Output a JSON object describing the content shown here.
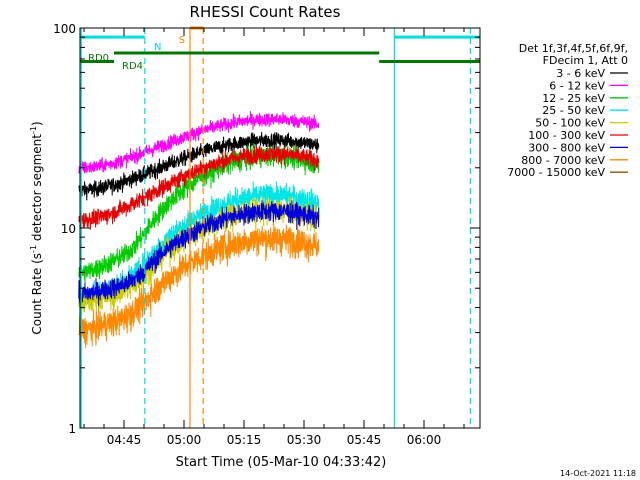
{
  "chart_data": {
    "type": "line",
    "title": "RHESSI Count Rates",
    "xlabel": "Start Time (05-Mar-10 04:33:42)",
    "ylabel": "Count Rate (s⁻¹ detector segment⁻¹)",
    "ylabel_main": "Count Rate (s",
    "ylabel_mid": " detector segment",
    "ylabel_end": ")",
    "ylabel_sup": "-1",
    "x_start_minute": 33.7,
    "x_end_minute": 93.7,
    "x_ticks": [
      {
        "minute": 45,
        "label": "04:45"
      },
      {
        "minute": 60,
        "label": "05:00"
      },
      {
        "minute": 75,
        "label": "05:15"
      },
      {
        "minute": 90,
        "label": "05:30"
      },
      {
        "minute": 105,
        "label": "05:45"
      },
      {
        "minute": 120,
        "label": "06:00"
      }
    ],
    "xlim_minutes": [
      34,
      134
    ],
    "ylim": [
      1,
      100
    ],
    "y_scale": "log",
    "y_ticks": [
      {
        "value": 1,
        "label": "1"
      },
      {
        "value": 10,
        "label": "10"
      },
      {
        "value": 100,
        "label": "100"
      }
    ],
    "legend_header": [
      "Det 1f,3f,4f,5f,6f,9f,",
      "FDecim 1, Att 0"
    ],
    "series": [
      {
        "name": "3 - 6 keV",
        "color": "#000000",
        "base": 15.5,
        "amp": 12,
        "dip": 0,
        "noise": 0.045
      },
      {
        "name": "6 - 12 keV",
        "color": "#ff00ff",
        "base": 20,
        "amp": 15,
        "dip": 0,
        "noise": 0.04
      },
      {
        "name": "12 - 25 keV",
        "color": "#00cc00",
        "base": 6,
        "amp": 17,
        "dip": 2.2,
        "noise": 0.06
      },
      {
        "name": "25 - 50 keV",
        "color": "#00e5e5",
        "base": 4.6,
        "amp": 10,
        "dip": 1.3,
        "noise": 0.07
      },
      {
        "name": "50 - 100 keV",
        "color": "#cccc00",
        "base": 4.3,
        "amp": 8,
        "dip": 1.1,
        "noise": 0.075
      },
      {
        "name": "100 - 300 keV",
        "color": "#e60000",
        "base": 11,
        "amp": 12.5,
        "dip": 0,
        "noise": 0.05
      },
      {
        "name": "300 - 800 keV",
        "color": "#0000dd",
        "base": 4.7,
        "amp": 7.5,
        "dip": 1.1,
        "noise": 0.06
      },
      {
        "name": "800 - 7000 keV",
        "color": "#ff8800",
        "base": 3.1,
        "amp": 5.8,
        "dip": 0.7,
        "noise": 0.085
      },
      {
        "name": "7000 - 15000 keV",
        "color": "#885500",
        "base": null,
        "amp": 0,
        "dip": 0,
        "noise": 0
      }
    ],
    "annotations": {
      "flags": [
        {
          "label": "N",
          "color": "#00dddd"
        },
        {
          "label": "S",
          "color": "#ff8800"
        },
        {
          "label": "RD0",
          "color": "#007700"
        },
        {
          "label": "RD4",
          "color": "#007700"
        }
      ],
      "flag_bars": [
        {
          "name": "night-left",
          "color": "#00dddd",
          "y": 90,
          "x0": 34,
          "x1": 50.2
        },
        {
          "name": "night-right",
          "color": "#00dddd",
          "y": 90,
          "x0": 112.6,
          "x1": 134
        },
        {
          "name": "saa",
          "color": "#ff8800",
          "y": 100,
          "x0": 61.5,
          "x1": 64.8
        },
        {
          "name": "decim-1",
          "color": "#007700",
          "y": 68,
          "x0": 34,
          "x1": 42.5
        },
        {
          "name": "decim-2",
          "color": "#007700",
          "y": 75,
          "x0": 42.5,
          "x1": 108.8
        },
        {
          "name": "decim-3",
          "color": "#007700",
          "y": 68,
          "x0": 108.8,
          "x1": 134
        }
      ],
      "vlines": [
        {
          "minute": 34.3,
          "color": "#00dddd",
          "dash": false
        },
        {
          "minute": 50.2,
          "color": "#00dddd",
          "dash": true
        },
        {
          "minute": 61.5,
          "color": "#ff8800",
          "dash": false
        },
        {
          "minute": 64.8,
          "color": "#ff8800",
          "dash": true
        },
        {
          "minute": 112.6,
          "color": "#00dddd",
          "dash": false
        },
        {
          "minute": 131.6,
          "color": "#00dddd",
          "dash": true
        }
      ]
    },
    "footer": "14-Oct-2021 11:18"
  }
}
